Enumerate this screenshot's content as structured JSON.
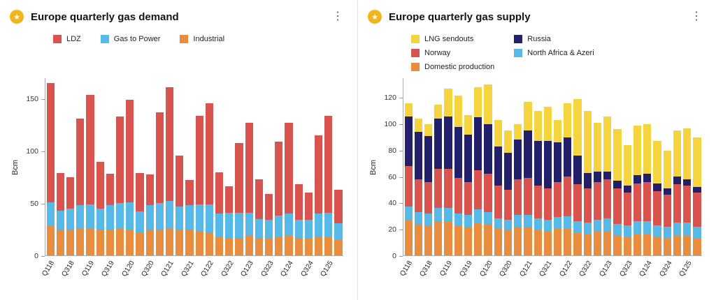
{
  "ui": {
    "menu_icon": "⋮",
    "star_icon": "★"
  },
  "chart_data": [
    {
      "type": "bar",
      "stacked": true,
      "title": "Europe quarterly gas demand",
      "ylabel": "Bcm",
      "ylim": [
        0,
        170
      ],
      "yticks": [
        0,
        50,
        100,
        150
      ],
      "grid": false,
      "legend_position": "top",
      "legend_columns": 3,
      "legend_order": [
        "LDZ",
        "Gas to Power",
        "Industrial"
      ],
      "stack_order_bottom_to_top": [
        "Industrial",
        "Gas to Power",
        "LDZ"
      ],
      "categories": [
        "Q118",
        "Q218",
        "Q318",
        "Q418",
        "Q119",
        "Q219",
        "Q319",
        "Q419",
        "Q120",
        "Q220",
        "Q320",
        "Q420",
        "Q121",
        "Q221",
        "Q321",
        "Q421",
        "Q122",
        "Q222",
        "Q322",
        "Q422",
        "Q123",
        "Q223",
        "Q323",
        "Q423",
        "Q124",
        "Q224",
        "Q324",
        "Q424",
        "Q125",
        "Q225"
      ],
      "label_every": 2,
      "series": [
        {
          "name": "LDZ",
          "color": "#d9534f",
          "values": [
            114,
            36,
            30,
            83,
            105,
            45,
            30,
            83,
            98,
            37,
            30,
            87,
            109,
            49,
            24,
            85,
            97,
            40,
            25,
            67,
            86,
            38,
            25,
            71,
            87,
            34,
            26,
            75,
            93,
            32
          ]
        },
        {
          "name": "Gas to Power",
          "color": "#56b9e8",
          "values": [
            23,
            18,
            20,
            22,
            23,
            20,
            23,
            24,
            26,
            20,
            24,
            25,
            26,
            22,
            24,
            26,
            27,
            22,
            25,
            24,
            22,
            18,
            18,
            20,
            21,
            17,
            18,
            22,
            23,
            16
          ]
        },
        {
          "name": "Industrial",
          "color": "#e88d3d",
          "values": [
            28,
            25,
            25,
            26,
            26,
            25,
            25,
            26,
            25,
            22,
            24,
            25,
            26,
            25,
            24,
            23,
            22,
            18,
            16,
            17,
            19,
            17,
            16,
            18,
            19,
            17,
            16,
            18,
            18,
            15
          ]
        }
      ]
    },
    {
      "type": "bar",
      "stacked": true,
      "title": "Europe quarterly gas supply",
      "ylabel": "Bcm",
      "ylim": [
        0,
        135
      ],
      "yticks": [
        0,
        20,
        40,
        60,
        80,
        100,
        120
      ],
      "grid": false,
      "legend_position": "top",
      "legend_columns": 2,
      "legend_order": [
        "LNG sendouts",
        "Russia",
        "Norway",
        "North Africa & Azeri",
        "Domestic production"
      ],
      "stack_order_bottom_to_top": [
        "Domestic production",
        "North Africa & Azeri",
        "Norway",
        "Russia",
        "LNG sendouts"
      ],
      "categories": [
        "Q118",
        "Q218",
        "Q318",
        "Q418",
        "Q119",
        "Q219",
        "Q319",
        "Q419",
        "Q120",
        "Q220",
        "Q320",
        "Q420",
        "Q121",
        "Q221",
        "Q321",
        "Q421",
        "Q122",
        "Q222",
        "Q322",
        "Q422",
        "Q123",
        "Q223",
        "Q323",
        "Q423",
        "Q124",
        "Q224",
        "Q324",
        "Q424",
        "Q125",
        "Q225"
      ],
      "label_every": 2,
      "series": [
        {
          "name": "LNG sendouts",
          "color": "#f6d43f",
          "values": [
            10,
            10,
            9,
            11,
            21,
            24,
            15,
            23,
            30,
            20,
            17,
            12,
            22,
            23,
            26,
            17,
            26,
            43,
            47,
            37,
            42,
            39,
            31,
            38,
            38,
            32,
            29,
            35,
            39,
            38
          ]
        },
        {
          "name": "Russia",
          "color": "#221f6b",
          "values": [
            38,
            36,
            35,
            38,
            40,
            39,
            36,
            40,
            38,
            30,
            28,
            30,
            36,
            34,
            36,
            30,
            30,
            22,
            12,
            8,
            6,
            6,
            5,
            6,
            6,
            6,
            5,
            6,
            5,
            4
          ]
        },
        {
          "name": "Norway",
          "color": "#d9534f",
          "values": [
            31,
            25,
            24,
            30,
            30,
            27,
            25,
            30,
            29,
            25,
            23,
            27,
            28,
            25,
            24,
            27,
            30,
            28,
            26,
            29,
            30,
            27,
            25,
            29,
            30,
            26,
            24,
            29,
            28,
            26
          ]
        },
        {
          "name": "North Africa & Azeri",
          "color": "#56b9e8",
          "values": [
            10,
            9,
            9,
            10,
            10,
            9,
            9,
            10,
            9,
            8,
            8,
            9,
            9,
            9,
            9,
            9,
            10,
            9,
            9,
            9,
            10,
            9,
            9,
            10,
            10,
            9,
            9,
            10,
            10,
            9
          ]
        },
        {
          "name": "Domestic production",
          "color": "#e88d3d",
          "values": [
            27,
            24,
            23,
            26,
            26,
            23,
            22,
            25,
            24,
            20,
            19,
            22,
            22,
            19,
            18,
            20,
            20,
            17,
            16,
            18,
            18,
            15,
            14,
            16,
            16,
            14,
            13,
            15,
            15,
            13
          ]
        }
      ]
    }
  ]
}
